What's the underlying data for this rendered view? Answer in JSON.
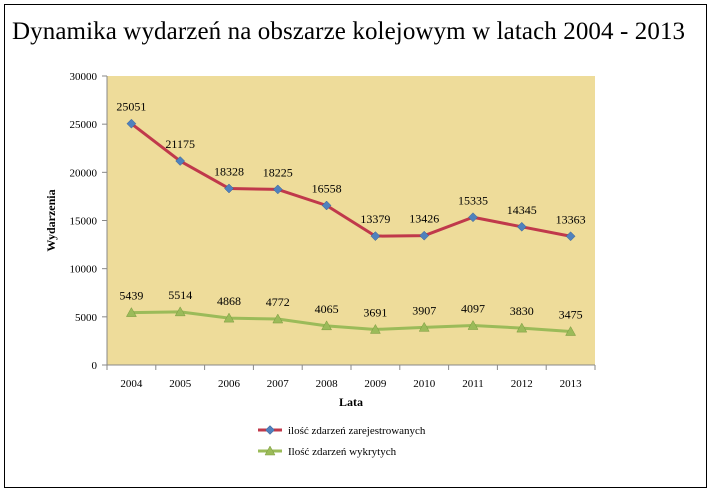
{
  "chart_data": {
    "type": "line",
    "title": "Dynamika wydarzeń na obszarze kolejowym w latach 2004 - 2013",
    "xlabel": "Lata",
    "ylabel": "Wydarzenia",
    "categories": [
      "2004",
      "2005",
      "2006",
      "2007",
      "2008",
      "2009",
      "2010",
      "2011",
      "2012",
      "2013"
    ],
    "ylim": [
      0,
      30000
    ],
    "yticks": [
      "0",
      "5000",
      "10000",
      "15000",
      "20000",
      "25000",
      "30000"
    ],
    "plot_background": "#eedc9a",
    "legend_position": "bottom-center",
    "series": [
      {
        "name": "ilość zdarzeń zarejestrowanych",
        "color": "#c0394b",
        "marker_color": "#4f81bd",
        "marker": "diamond",
        "values": [
          25051,
          21175,
          18328,
          18225,
          16558,
          13379,
          13426,
          15335,
          14345,
          13363
        ]
      },
      {
        "name": "Ilość zdarzeń wykrytych",
        "color": "#9bbb59",
        "marker_color": "#9bbb59",
        "marker": "triangle",
        "values": [
          5439,
          5514,
          4868,
          4772,
          4065,
          3691,
          3907,
          4097,
          3830,
          3475
        ]
      }
    ]
  }
}
